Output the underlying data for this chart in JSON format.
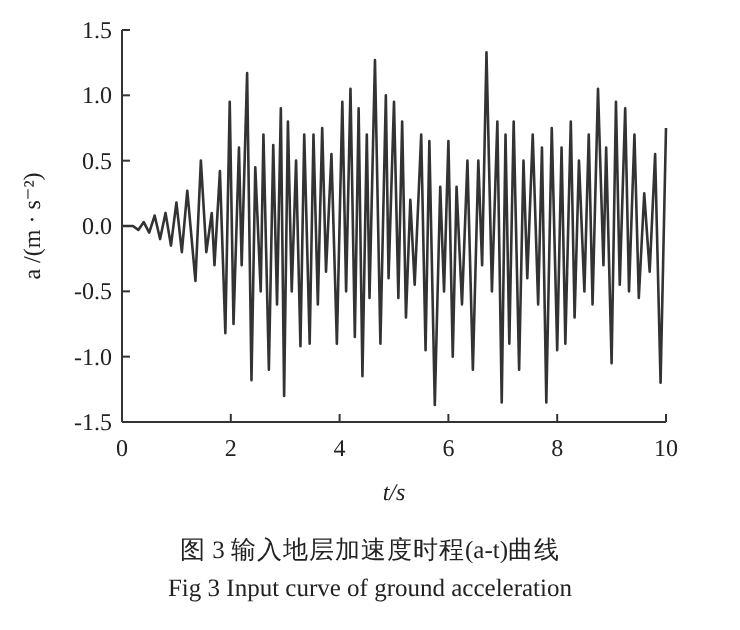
{
  "chart_data": {
    "type": "line",
    "xlabel": "t/s",
    "ylabel": "a /(m · s⁻²)",
    "annotations": [
      "图 3  输入地层加速度时程(a-t)曲线",
      "Fig 3  Input curve of ground acceleration"
    ],
    "xlim": [
      0,
      10
    ],
    "ylim": [
      -1.5,
      1.5
    ],
    "xticks": [
      0,
      2,
      4,
      6,
      8,
      10
    ],
    "yticks": [
      {
        "value": -1.5,
        "label": "-1.5"
      },
      {
        "value": -1,
        "label": "-1.0"
      },
      {
        "value": -0.5,
        "label": "-0.5"
      },
      {
        "value": 0,
        "label": "0.0"
      },
      {
        "value": 0.5,
        "label": "0.5"
      },
      {
        "value": 1,
        "label": "1.0"
      },
      {
        "value": 1.5,
        "label": "1.5"
      }
    ],
    "grid": false,
    "marker": "none",
    "line_style": "solid",
    "series": [
      {
        "color": "#333333",
        "x": [
          0,
          0.2,
          0.3,
          0.4,
          0.5,
          0.6,
          0.7,
          0.8,
          0.9,
          1.0,
          1.1,
          1.2,
          1.35,
          1.45,
          1.55,
          1.65,
          1.7,
          1.8,
          1.9,
          1.98,
          2.05,
          2.15,
          2.2,
          2.3,
          2.38,
          2.45,
          2.55,
          2.6,
          2.7,
          2.78,
          2.85,
          2.92,
          2.98,
          3.05,
          3.12,
          3.2,
          3.28,
          3.35,
          3.45,
          3.52,
          3.6,
          3.68,
          3.75,
          3.85,
          3.95,
          4.05,
          4.12,
          4.2,
          4.28,
          4.35,
          4.42,
          4.5,
          4.55,
          4.65,
          4.75,
          4.85,
          4.9,
          5.0,
          5.08,
          5.15,
          5.22,
          5.3,
          5.38,
          5.5,
          5.58,
          5.65,
          5.75,
          5.85,
          5.92,
          6.0,
          6.08,
          6.15,
          6.25,
          6.35,
          6.45,
          6.55,
          6.62,
          6.7,
          6.8,
          6.9,
          6.98,
          7.05,
          7.12,
          7.2,
          7.3,
          7.38,
          7.45,
          7.55,
          7.65,
          7.72,
          7.8,
          7.9,
          8.0,
          8.08,
          8.15,
          8.25,
          8.32,
          8.4,
          8.5,
          8.58,
          8.65,
          8.75,
          8.85,
          8.9,
          9.0,
          9.08,
          9.15,
          9.25,
          9.32,
          9.42,
          9.5,
          9.6,
          9.7,
          9.8,
          9.9,
          10.0
        ],
        "values": [
          0,
          0.0,
          -0.03,
          0.03,
          -0.05,
          0.08,
          -0.1,
          0.1,
          -0.15,
          0.18,
          -0.2,
          0.27,
          -0.42,
          0.5,
          -0.2,
          0.1,
          -0.3,
          0.42,
          -0.82,
          0.95,
          -0.75,
          0.6,
          -0.3,
          1.17,
          -1.18,
          0.45,
          -0.5,
          0.7,
          -1.1,
          0.62,
          -0.6,
          0.9,
          -1.3,
          0.8,
          -0.5,
          0.5,
          -0.92,
          0.7,
          -0.9,
          0.7,
          -0.6,
          0.75,
          -0.35,
          0.55,
          -0.9,
          0.95,
          -0.5,
          1.05,
          -0.85,
          0.9,
          -1.15,
          0.7,
          -0.55,
          1.27,
          -0.9,
          1.0,
          -0.4,
          0.95,
          -0.55,
          0.8,
          -0.7,
          0.2,
          -0.45,
          0.7,
          -0.95,
          0.65,
          -1.37,
          0.3,
          -0.5,
          0.65,
          -1.0,
          0.3,
          -0.6,
          0.5,
          -1.1,
          0.5,
          -0.3,
          1.33,
          -0.5,
          0.8,
          -1.35,
          0.7,
          -0.9,
          0.8,
          -1.1,
          0.5,
          -0.4,
          0.7,
          -0.6,
          0.6,
          -1.35,
          0.75,
          -0.95,
          0.6,
          -0.9,
          0.8,
          -0.7,
          0.5,
          -0.5,
          0.7,
          -0.6,
          1.05,
          -0.3,
          0.6,
          -1.05,
          0.95,
          -0.45,
          0.9,
          -0.5,
          0.7,
          -0.55,
          0.25,
          -0.35,
          0.55,
          -1.2,
          0.75
        ]
      }
    ]
  }
}
